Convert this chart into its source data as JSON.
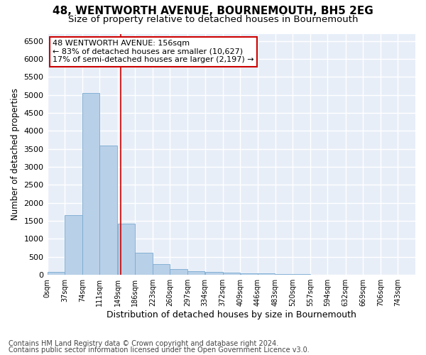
{
  "title": "48, WENTWORTH AVENUE, BOURNEMOUTH, BH5 2EG",
  "subtitle": "Size of property relative to detached houses in Bournemouth",
  "xlabel": "Distribution of detached houses by size in Bournemouth",
  "ylabel": "Number of detached properties",
  "bar_values": [
    75,
    1650,
    5050,
    3600,
    1420,
    610,
    290,
    150,
    100,
    80,
    55,
    45,
    40,
    30,
    15,
    10,
    8,
    5,
    3,
    0,
    0
  ],
  "bin_edges": [
    0,
    37,
    74,
    111,
    149,
    186,
    223,
    260,
    297,
    334,
    372,
    409,
    446,
    483,
    520,
    557,
    594,
    632,
    669,
    706,
    743,
    780
  ],
  "tick_labels": [
    "0sqm",
    "37sqm",
    "74sqm",
    "111sqm",
    "149sqm",
    "186sqm",
    "223sqm",
    "260sqm",
    "297sqm",
    "334sqm",
    "372sqm",
    "409sqm",
    "446sqm",
    "483sqm",
    "520sqm",
    "557sqm",
    "594sqm",
    "632sqm",
    "669sqm",
    "706sqm",
    "743sqm"
  ],
  "bar_color": "#b8d0e8",
  "bar_edge_color": "#7aaad0",
  "background_color": "#e8eef8",
  "grid_color": "#ffffff",
  "vline_x": 156,
  "vline_color": "#cc0000",
  "annotation_text": "48 WENTWORTH AVENUE: 156sqm\n← 83% of detached houses are smaller (10,627)\n17% of semi-detached houses are larger (2,197) →",
  "annotation_box_color": "#ffffff",
  "annotation_box_edge_color": "#cc0000",
  "ylim": [
    0,
    6700
  ],
  "yticks": [
    0,
    500,
    1000,
    1500,
    2000,
    2500,
    3000,
    3500,
    4000,
    4500,
    5000,
    5500,
    6000,
    6500
  ],
  "footer_line1": "Contains HM Land Registry data © Crown copyright and database right 2024.",
  "footer_line2": "Contains public sector information licensed under the Open Government Licence v3.0.",
  "title_fontsize": 11,
  "subtitle_fontsize": 9.5,
  "xlabel_fontsize": 9,
  "ylabel_fontsize": 8.5,
  "tick_fontsize": 7,
  "annotation_fontsize": 8,
  "footer_fontsize": 7
}
